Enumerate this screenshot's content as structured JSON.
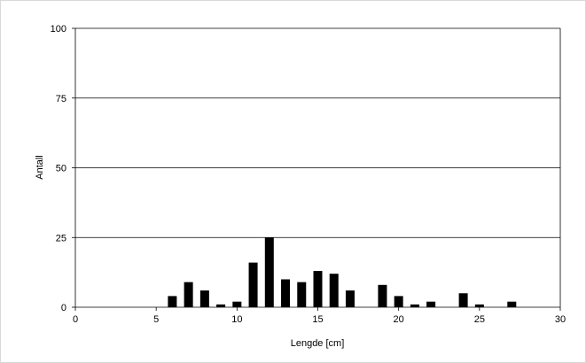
{
  "chart_data": {
    "type": "bar",
    "xlabel": "Lengde [cm]",
    "ylabel": "Antall",
    "xlim": [
      0,
      30
    ],
    "ylim": [
      0,
      100
    ],
    "xticks": [
      0,
      5,
      10,
      15,
      20,
      25,
      30
    ],
    "yticks": [
      0,
      25,
      50,
      75,
      100
    ],
    "grid": "horizontal",
    "colors": {
      "bar": "#000000",
      "grid": "#000000",
      "background": "#ffffff",
      "frame": "#d9d9d9"
    },
    "x": [
      6,
      7,
      8,
      9,
      10,
      11,
      12,
      13,
      14,
      15,
      16,
      17,
      19,
      20,
      21,
      22,
      24,
      25,
      27
    ],
    "values": [
      4,
      9,
      6,
      1,
      2,
      16,
      25,
      10,
      9,
      13,
      12,
      6,
      8,
      4,
      1,
      2,
      5,
      1,
      2
    ]
  }
}
